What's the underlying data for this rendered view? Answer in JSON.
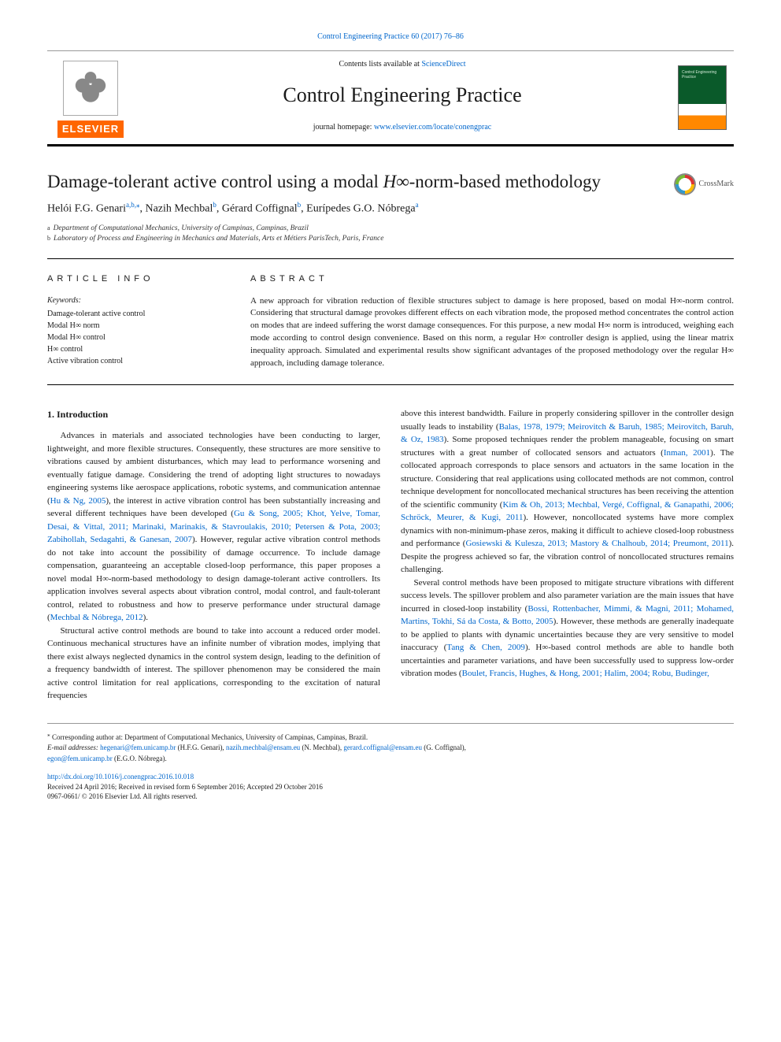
{
  "citation": "Control Engineering Practice 60 (2017) 76–86",
  "masthead": {
    "contents_prefix": "Contents lists available at ",
    "contents_link": "ScienceDirect",
    "journal": "Control Engineering Practice",
    "homepage_prefix": "journal homepage: ",
    "homepage_url": "www.elsevier.com/locate/conengprac",
    "publisher_wordmark": "ELSEVIER"
  },
  "article": {
    "title_pre": "Damage-tolerant active control using a modal ",
    "title_math": "H∞",
    "title_post": "-norm-based methodology",
    "crossmark": "CrossMark"
  },
  "authors": {
    "a1_name": "Helói F.G. Genari",
    "a1_aff": "a,b,",
    "a1_corr": "⁎",
    "a2_name": "Nazih Mechbal",
    "a2_aff": "b",
    "a3_name": "Gérard Coffignal",
    "a3_aff": "b",
    "a4_name": "Eurípedes G.O. Nóbrega",
    "a4_aff": "a"
  },
  "affiliations": {
    "a_sup": "a",
    "a_text": "Department of Computational Mechanics, University of Campinas, Campinas, Brazil",
    "b_sup": "b",
    "b_text": "Laboratory of Process and Engineering in Mechanics and Materials, Arts et Métiers ParisTech, Paris, France"
  },
  "info": {
    "heading": "ARTICLE INFO",
    "keywords_label": "Keywords:",
    "k1": "Damage-tolerant active control",
    "k2": "Modal H∞ norm",
    "k3": "Modal H∞ control",
    "k4": "H∞ control",
    "k5": "Active vibration control"
  },
  "abstract": {
    "heading": "ABSTRACT",
    "text": "A new approach for vibration reduction of flexible structures subject to damage is here proposed, based on modal H∞-norm control. Considering that structural damage provokes different effects on each vibration mode, the proposed method concentrates the control action on modes that are indeed suffering the worst damage consequences. For this purpose, a new modal H∞ norm is introduced, weighing each mode according to control design convenience. Based on this norm, a regular H∞ controller design is applied, using the linear matrix inequality approach. Simulated and experimental results show significant advantages of the proposed methodology over the regular H∞ approach, including damage tolerance."
  },
  "section1": {
    "heading": "1. Introduction",
    "p1a": "Advances in materials and associated technologies have been conducting to larger, lightweight, and more flexible structures. Consequently, these structures are more sensitive to vibrations caused by ambient disturbances, which may lead to performance worsening and eventually fatigue damage. Considering the trend of adopting light structures to nowadays engineering systems like aerospace applications, robotic systems, and communication antennae (",
    "p1r1": "Hu & Ng, 2005",
    "p1b": "), the interest in active vibration control has been substantially increasing and several different techniques have been developed (",
    "p1r2": "Gu & Song, 2005; Khot, Yelve, Tomar, Desai, & Vittal, 2011; Marinaki, Marinakis, & Stavroulakis, 2010; Petersen & Pota, 2003; Zabihollah, Sedagahti, & Ganesan, 2007",
    "p1c": "). However, regular active vibration control methods do not take into account the possibility of damage occurrence. To include damage compensation, guaranteeing an acceptable closed-loop performance, this paper proposes a novel modal H∞-norm-based methodology to design damage-tolerant active controllers. Its application involves several aspects about vibration control, modal control, and fault-tolerant control, related to robustness and how to preserve performance under structural damage (",
    "p1r3": "Mechbal & Nóbrega, 2012",
    "p1d": ").",
    "p2": "Structural active control methods are bound to take into account a reduced order model. Continuous mechanical structures have an infinite number of vibration modes, implying that there exist always neglected dynamics in the control system design, leading to the definition of a frequency bandwidth of interest. The spillover phenomenon may be considered the main active control limitation for real applications, corresponding to the excitation of natural frequencies",
    "p3a": "above this interest bandwidth. Failure in properly considering spillover in the controller design usually leads to instability (",
    "p3r1": "Balas, 1978, 1979; Meirovitch & Baruh, 1985; Meirovitch, Baruh, & Oz, 1983",
    "p3b": "). Some proposed techniques render the problem manageable, focusing on smart structures with a great number of collocated sensors and actuators (",
    "p3r2": "Inman, 2001",
    "p3c": "). The collocated approach corresponds to place sensors and actuators in the same location in the structure. Considering that real applications using collocated methods are not common, control technique development for noncollocated mechanical structures has been receiving the attention of the scientific community (",
    "p3r3": "Kim & Oh, 2013; Mechbal, Vergé, Coffignal, & Ganapathi, 2006; Schröck, Meurer, & Kugi, 2011",
    "p3d": "). However, noncollocated systems have more complex dynamics with non-minimum-phase zeros, making it difficult to achieve closed-loop robustness and performance (",
    "p3r4": "Gosiewski & Kulesza, 2013; Mastory & Chalhoub, 2014; Preumont, 2011",
    "p3e": "). Despite the progress achieved so far, the vibration control of noncollocated structures remains challenging.",
    "p4a": "Several control methods have been proposed to mitigate structure vibrations with different success levels. The spillover problem and also parameter variation are the main issues that have incurred in closed-loop instability (",
    "p4r1": "Bossi, Rottenbacher, Mimmi, & Magni, 2011; Mohamed, Martins, Tokhi, Sá da Costa, & Botto, 2005",
    "p4b": "). However, these methods are generally inadequate to be applied to plants with dynamic uncertainties because they are very sensitive to model inaccuracy (",
    "p4r2": "Tang & Chen, 2009",
    "p4c": "). H∞-based control methods are able to handle both uncertainties and parameter variations, and have been successfully used to suppress low-order vibration modes (",
    "p4r3": "Boulet, Francis, Hughes, & Hong, 2001; Halim, 2004; Robu, Budinger,"
  },
  "footnotes": {
    "corr_marker": "⁎",
    "corr_text": "Corresponding author at: Department of Computational Mechanics, University of Campinas, Campinas, Brazil.",
    "email_label": "E-mail addresses: ",
    "e1": "hegenari@fem.unicamp.br",
    "e1_who": " (H.F.G. Genari), ",
    "e2": "nazih.mechbal@ensam.eu",
    "e2_who": " (N. Mechbal), ",
    "e3": "gerard.coffignal@ensam.eu",
    "e3_who": " (G. Coffignal),",
    "e4": "egon@fem.unicamp.br",
    "e4_who": " (E.G.O. Nóbrega)."
  },
  "pubinfo": {
    "doi": "http://dx.doi.org/10.1016/j.conengprac.2016.10.018",
    "history": "Received 24 April 2016; Received in revised form 6 September 2016; Accepted 29 October 2016",
    "issn_copyright": "0967-0661/ © 2016 Elsevier Ltd. All rights reserved."
  },
  "colors": {
    "link": "#0066cc",
    "elsevier_orange": "#ff6600",
    "rule_dark": "#000000",
    "rule_light": "#999999",
    "cover_green": "#0a5a2a",
    "cover_orange": "#ff8800"
  }
}
